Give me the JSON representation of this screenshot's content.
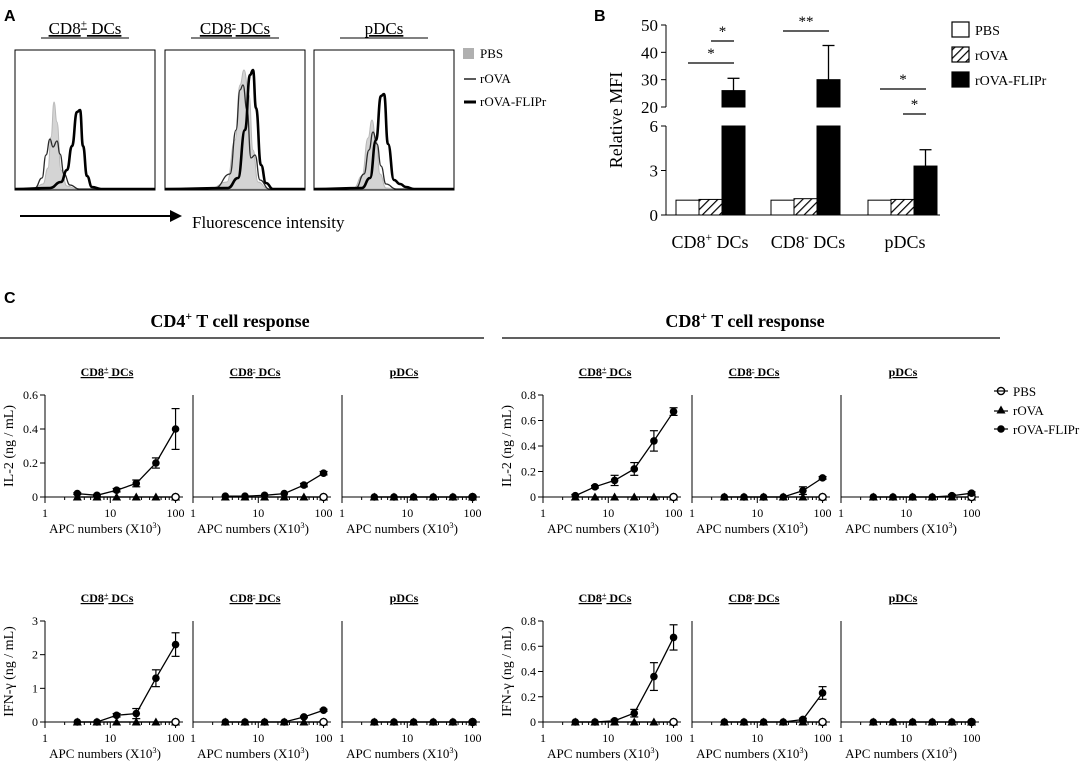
{
  "chart_data": {
    "panel_a": {
      "label": "A",
      "type": "histogram",
      "subpanels": [
        {
          "title": "CD8",
          "title_sup": "+",
          "title_suffix": " DCs"
        },
        {
          "title": "CD8",
          "title_sup": "-",
          "title_suffix": " DCs"
        },
        {
          "title": "pDCs",
          "title_sup": "",
          "title_suffix": ""
        }
      ],
      "legend": [
        {
          "name": "PBS",
          "style": "fill-gray"
        },
        {
          "name": "rOVA",
          "style": "thin"
        },
        {
          "name": "rOVA-FLIPr",
          "style": "thick"
        }
      ],
      "xlabel": "Fluorescence intensity"
    },
    "panel_b": {
      "label": "B",
      "type": "bar",
      "ylabel": "Relative MFI",
      "axis_break": [
        6,
        20
      ],
      "lower_ticks": [
        0,
        3,
        6
      ],
      "upper_ticks": [
        20,
        30,
        40,
        50
      ],
      "categories": [
        {
          "name": "CD8",
          "sup": "+",
          "suffix": " DCs"
        },
        {
          "name": "CD8",
          "sup": "-",
          "suffix": " DCs"
        },
        {
          "name": "pDCs",
          "sup": "",
          "suffix": ""
        }
      ],
      "series": [
        {
          "name": "PBS",
          "values": [
            1,
            1,
            1
          ],
          "errors": [
            0,
            0,
            0
          ]
        },
        {
          "name": "rOVA",
          "values": [
            1.05,
            1.1,
            1.05
          ],
          "errors": [
            0,
            0,
            0
          ]
        },
        {
          "name": "rOVA-FLIPr",
          "values": [
            26,
            30,
            3.3
          ],
          "errors": [
            4.5,
            12.5,
            1.1
          ]
        }
      ],
      "significance": [
        {
          "group": 0,
          "from": 0,
          "to": 2,
          "label": "*"
        },
        {
          "group": 0,
          "from": 1,
          "to": 2,
          "label": "*"
        },
        {
          "group": 1,
          "from": 0,
          "to": 2,
          "label": "**"
        },
        {
          "group": 2,
          "from": 0,
          "to": 2,
          "label": "*"
        },
        {
          "group": 2,
          "from": 1,
          "to": 2,
          "label": "*"
        }
      ]
    },
    "panel_c": {
      "label": "C",
      "type": "line",
      "group_titles": [
        {
          "name": "CD4",
          "sup": "+",
          "suffix": " T cell response"
        },
        {
          "name": "CD8",
          "sup": "+",
          "suffix": " T cell response"
        }
      ],
      "x": [
        3.125,
        6.25,
        12.5,
        25,
        50,
        100
      ],
      "x_scale": "log",
      "x_ticks": [
        1,
        10,
        100
      ],
      "xlabel_main": "APC numbers (X10",
      "xlabel_sup": "3",
      "xlabel_end": ")",
      "legend": [
        {
          "name": "PBS",
          "marker": "open-circle"
        },
        {
          "name": "rOVA",
          "marker": "triangle"
        },
        {
          "name": "rOVA-FLIPr",
          "marker": "filled-circle"
        }
      ],
      "rows": [
        {
          "ylabel": "IL-2 (ng / mL)",
          "groups": [
            {
              "ylim": [
                0,
                0.6
              ],
              "yticks": [
                "0",
                "0.2",
                "0.4",
                "0.6"
              ],
              "panels": [
                {
                  "title": "CD8",
                  "sup": "+",
                  "suffix": " DCs",
                  "PBS": [
                    0,
                    0,
                    0,
                    0,
                    0,
                    0
                  ],
                  "rOVA": [
                    0,
                    0,
                    0,
                    0,
                    0,
                    0
                  ],
                  "rOVA-FLIPr": [
                    0.02,
                    0.01,
                    0.04,
                    0.08,
                    0.2,
                    0.4
                  ],
                  "err": [
                    0.005,
                    0.005,
                    0.01,
                    0.02,
                    0.03,
                    0.12
                  ]
                },
                {
                  "title": "CD8",
                  "sup": "-",
                  "suffix": " DCs",
                  "PBS": [
                    0,
                    0,
                    0,
                    0,
                    0,
                    0
                  ],
                  "rOVA": [
                    0,
                    0,
                    0,
                    0,
                    0,
                    0
                  ],
                  "rOVA-FLIPr": [
                    0.005,
                    0.005,
                    0.01,
                    0.02,
                    0.07,
                    0.14
                  ],
                  "err": [
                    0,
                    0,
                    0,
                    0,
                    0.01,
                    0.01
                  ]
                },
                {
                  "title": "pDCs",
                  "sup": "",
                  "suffix": "",
                  "PBS": [
                    0,
                    0,
                    0,
                    0,
                    0,
                    0
                  ],
                  "rOVA": [
                    0,
                    0,
                    0,
                    0,
                    0,
                    0
                  ],
                  "rOVA-FLIPr": [
                    0,
                    0,
                    0,
                    0,
                    0,
                    0
                  ],
                  "err": [
                    0,
                    0,
                    0,
                    0,
                    0,
                    0
                  ]
                }
              ]
            },
            {
              "ylim": [
                0,
                0.8
              ],
              "yticks": [
                "0",
                "0.2",
                "0.4",
                "0.6",
                "0.8"
              ],
              "panels": [
                {
                  "title": "CD8",
                  "sup": "+",
                  "suffix": " DCs",
                  "PBS": [
                    0,
                    0,
                    0,
                    0,
                    0,
                    0
                  ],
                  "rOVA": [
                    0,
                    0,
                    0,
                    0,
                    0,
                    0
                  ],
                  "rOVA-FLIPr": [
                    0.01,
                    0.08,
                    0.13,
                    0.22,
                    0.44,
                    0.67
                  ],
                  "err": [
                    0.01,
                    0.01,
                    0.04,
                    0.05,
                    0.08,
                    0.03
                  ]
                },
                {
                  "title": "CD8",
                  "sup": "-",
                  "suffix": " DCs",
                  "PBS": [
                    0,
                    0,
                    0,
                    0,
                    0,
                    0
                  ],
                  "rOVA": [
                    0,
                    0,
                    0,
                    0,
                    0,
                    0
                  ],
                  "rOVA-FLIPr": [
                    0,
                    0,
                    0,
                    0,
                    0.05,
                    0.15
                  ],
                  "err": [
                    0,
                    0,
                    0,
                    0,
                    0.03,
                    0.01
                  ]
                },
                {
                  "title": "pDCs",
                  "sup": "",
                  "suffix": "",
                  "PBS": [
                    0,
                    0,
                    0,
                    0,
                    0,
                    0
                  ],
                  "rOVA": [
                    0,
                    0,
                    0,
                    0,
                    0,
                    0
                  ],
                  "rOVA-FLIPr": [
                    0,
                    0,
                    0,
                    0,
                    0.01,
                    0.03
                  ],
                  "err": [
                    0,
                    0,
                    0,
                    0,
                    0.01,
                    0.01
                  ]
                }
              ]
            }
          ]
        },
        {
          "ylabel": "IFN-γ (ng / mL)",
          "groups": [
            {
              "ylim": [
                0,
                3
              ],
              "yticks": [
                "0",
                "1",
                "2",
                "3"
              ],
              "panels": [
                {
                  "title": "CD8",
                  "sup": "+",
                  "suffix": " DCs",
                  "PBS": [
                    0,
                    0,
                    0,
                    0,
                    0,
                    0
                  ],
                  "rOVA": [
                    0,
                    0,
                    0,
                    0,
                    0,
                    0
                  ],
                  "rOVA-FLIPr": [
                    0,
                    0,
                    0.2,
                    0.25,
                    1.3,
                    2.3
                  ],
                  "err": [
                    0,
                    0,
                    0.05,
                    0.15,
                    0.25,
                    0.35
                  ]
                },
                {
                  "title": "CD8",
                  "sup": "-",
                  "suffix": " DCs",
                  "PBS": [
                    0,
                    0,
                    0,
                    0,
                    0,
                    0
                  ],
                  "rOVA": [
                    0,
                    0,
                    0,
                    0,
                    0,
                    0
                  ],
                  "rOVA-FLIPr": [
                    0,
                    0,
                    0,
                    0,
                    0.15,
                    0.35
                  ],
                  "err": [
                    0,
                    0,
                    0,
                    0,
                    0.02,
                    0.03
                  ]
                },
                {
                  "title": "pDCs",
                  "sup": "",
                  "suffix": "",
                  "PBS": [
                    0,
                    0,
                    0,
                    0,
                    0,
                    0
                  ],
                  "rOVA": [
                    0,
                    0,
                    0,
                    0,
                    0,
                    0
                  ],
                  "rOVA-FLIPr": [
                    0,
                    0,
                    0,
                    0,
                    0,
                    0
                  ],
                  "err": [
                    0,
                    0,
                    0,
                    0,
                    0,
                    0
                  ]
                }
              ]
            },
            {
              "ylim": [
                0,
                0.8
              ],
              "yticks": [
                "0",
                "0.2",
                "0.4",
                "0.6",
                "0.8"
              ],
              "panels": [
                {
                  "title": "CD8",
                  "sup": "+",
                  "suffix": " DCs",
                  "PBS": [
                    0,
                    0,
                    0,
                    0,
                    0,
                    0
                  ],
                  "rOVA": [
                    0,
                    0,
                    0,
                    0,
                    0,
                    0
                  ],
                  "rOVA-FLIPr": [
                    0,
                    0,
                    0.01,
                    0.07,
                    0.36,
                    0.67
                  ],
                  "err": [
                    0,
                    0,
                    0.01,
                    0.03,
                    0.11,
                    0.1
                  ]
                },
                {
                  "title": "CD8",
                  "sup": "-",
                  "suffix": " DCs",
                  "PBS": [
                    0,
                    0,
                    0,
                    0,
                    0,
                    0
                  ],
                  "rOVA": [
                    0,
                    0,
                    0,
                    0,
                    0,
                    0
                  ],
                  "rOVA-FLIPr": [
                    0,
                    0,
                    0,
                    0,
                    0.02,
                    0.23
                  ],
                  "err": [
                    0,
                    0,
                    0,
                    0,
                    0.01,
                    0.05
                  ]
                },
                {
                  "title": "pDCs",
                  "sup": "",
                  "suffix": "",
                  "PBS": [
                    0,
                    0,
                    0,
                    0,
                    0,
                    0
                  ],
                  "rOVA": [
                    0,
                    0,
                    0,
                    0,
                    0,
                    0
                  ],
                  "rOVA-FLIPr": [
                    0,
                    0,
                    0,
                    0,
                    0,
                    0
                  ],
                  "err": [
                    0,
                    0,
                    0,
                    0,
                    0,
                    0
                  ]
                }
              ]
            }
          ]
        }
      ]
    }
  }
}
